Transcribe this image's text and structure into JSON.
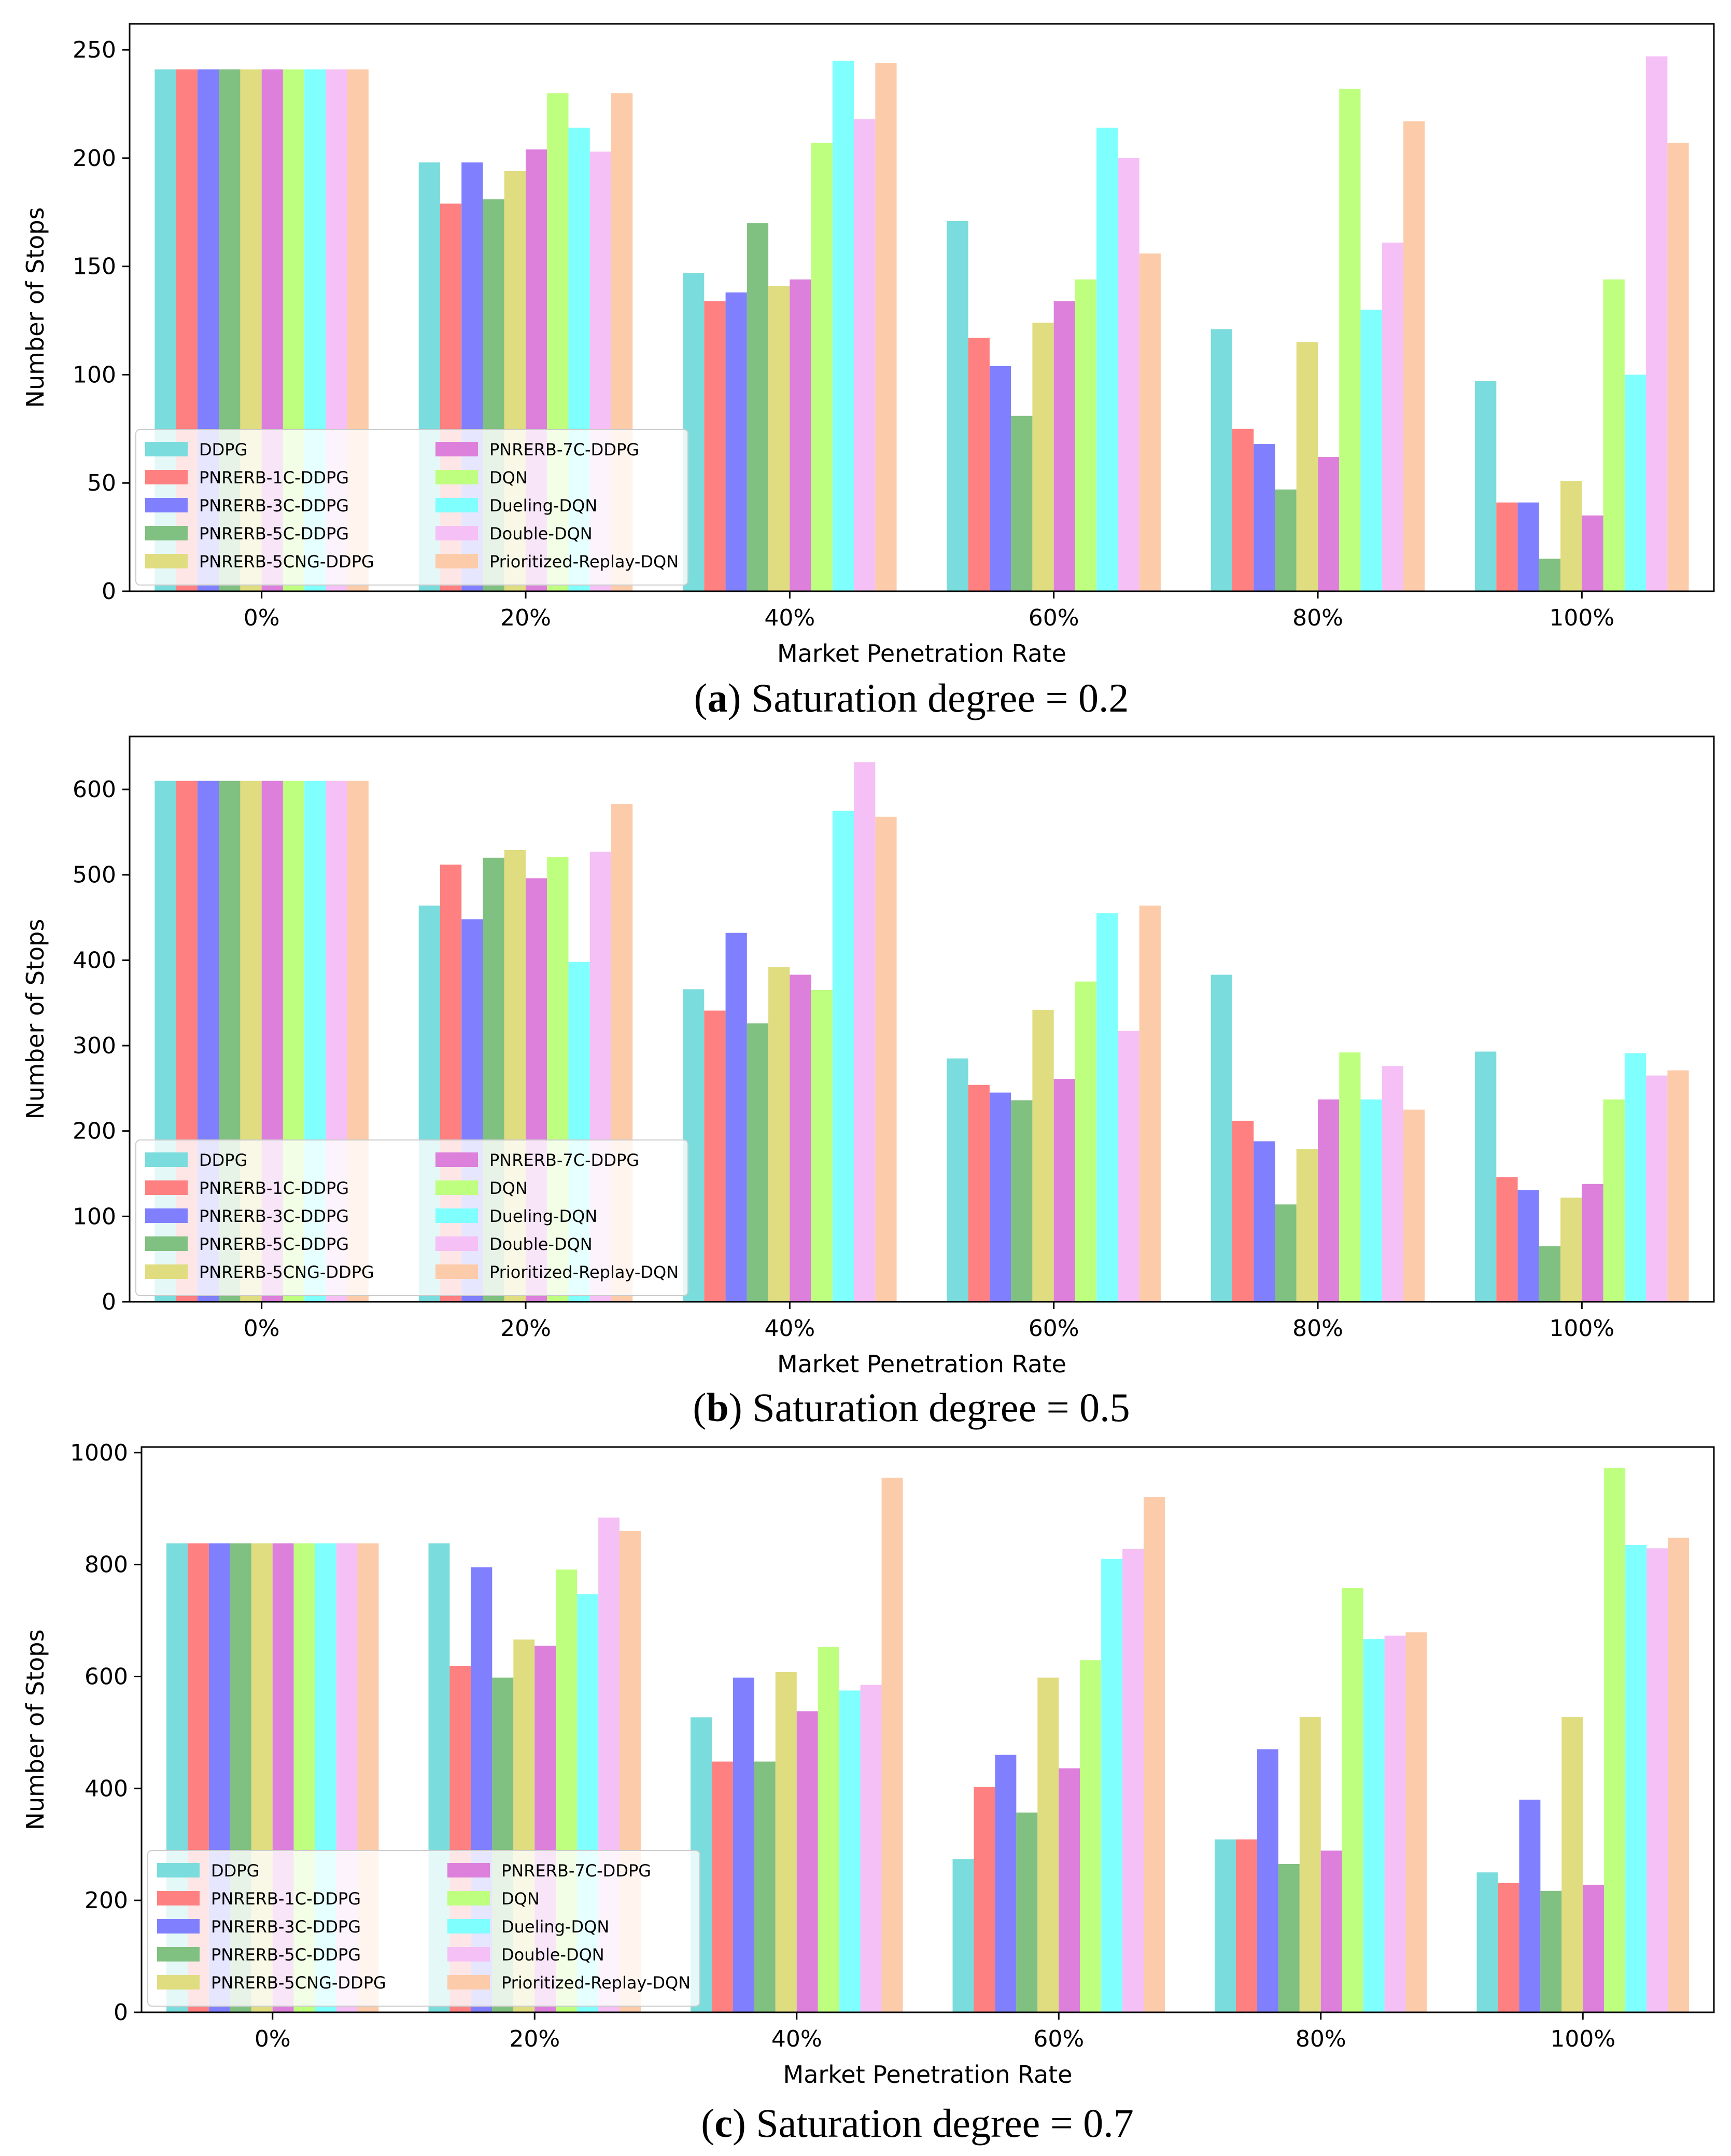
{
  "chart_data": [
    {
      "type": "bar",
      "caption_letter": "a",
      "caption_text": "Saturation degree = 0.2",
      "xlabel": "Market Penetration Rate",
      "ylabel": "Number of Stops",
      "ylim": [
        0,
        262
      ],
      "yticks": [
        0,
        50,
        100,
        150,
        200,
        250
      ],
      "legend_loc": "lower-left",
      "categories": [
        "0%",
        "20%",
        "40%",
        "60%",
        "80%",
        "100%"
      ],
      "series": [
        {
          "name": "DDPG",
          "values": [
            241,
            198,
            147,
            171,
            121,
            97
          ]
        },
        {
          "name": "PNRERB-1C-DDPG",
          "values": [
            241,
            179,
            134,
            117,
            75,
            41
          ]
        },
        {
          "name": "PNRERB-3C-DDPG",
          "values": [
            241,
            198,
            138,
            104,
            68,
            41
          ]
        },
        {
          "name": "PNRERB-5C-DDPG",
          "values": [
            241,
            181,
            170,
            81,
            47,
            15
          ]
        },
        {
          "name": "PNRERB-5CNG-DDPG",
          "values": [
            241,
            194,
            141,
            124,
            115,
            51
          ]
        },
        {
          "name": "PNRERB-7C-DDPG",
          "values": [
            241,
            204,
            144,
            134,
            62,
            35
          ]
        },
        {
          "name": "DQN",
          "values": [
            241,
            230,
            207,
            144,
            232,
            144
          ]
        },
        {
          "name": "Dueling-DQN",
          "values": [
            241,
            214,
            245,
            214,
            130,
            100
          ]
        },
        {
          "name": "Double-DQN",
          "values": [
            241,
            203,
            218,
            200,
            161,
            247
          ]
        },
        {
          "name": "Prioritized-Replay-DQN",
          "values": [
            241,
            230,
            244,
            156,
            217,
            207
          ]
        }
      ]
    },
    {
      "type": "bar",
      "caption_letter": "b",
      "caption_text": "Saturation degree = 0.5",
      "xlabel": "Market Penetration Rate",
      "ylabel": "Number of Stops",
      "ylim": [
        0,
        662
      ],
      "yticks": [
        0,
        100,
        200,
        300,
        400,
        500,
        600
      ],
      "legend_loc": "lower-left",
      "categories": [
        "0%",
        "20%",
        "40%",
        "60%",
        "80%",
        "100%"
      ],
      "series": [
        {
          "name": "DDPG",
          "values": [
            610,
            464,
            366,
            285,
            383,
            293
          ]
        },
        {
          "name": "PNRERB-1C-DDPG",
          "values": [
            610,
            512,
            341,
            254,
            212,
            146
          ]
        },
        {
          "name": "PNRERB-3C-DDPG",
          "values": [
            610,
            448,
            432,
            245,
            188,
            131
          ]
        },
        {
          "name": "PNRERB-5C-DDPG",
          "values": [
            610,
            520,
            326,
            236,
            114,
            65
          ]
        },
        {
          "name": "PNRERB-5CNG-DDPG",
          "values": [
            610,
            529,
            392,
            342,
            179,
            122
          ]
        },
        {
          "name": "PNRERB-7C-DDPG",
          "values": [
            610,
            496,
            383,
            261,
            237,
            138
          ]
        },
        {
          "name": "DQN",
          "values": [
            610,
            521,
            365,
            375,
            292,
            237
          ]
        },
        {
          "name": "Dueling-DQN",
          "values": [
            610,
            398,
            575,
            455,
            237,
            291
          ]
        },
        {
          "name": "Double-DQN",
          "values": [
            610,
            527,
            632,
            317,
            276,
            265
          ]
        },
        {
          "name": "Prioritized-Replay-DQN",
          "values": [
            610,
            583,
            568,
            464,
            225,
            271
          ]
        }
      ]
    },
    {
      "type": "bar",
      "caption_letter": "c",
      "caption_text": "Saturation degree = 0.7",
      "xlabel": "Market Penetration Rate",
      "ylabel": "Number of Stops",
      "ylim": [
        0,
        1010
      ],
      "yticks": [
        0,
        200,
        400,
        600,
        800,
        1000
      ],
      "legend_loc": "lower-left",
      "categories": [
        "0%",
        "20%",
        "40%",
        "60%",
        "80%",
        "100%"
      ],
      "series": [
        {
          "name": "DDPG",
          "values": [
            838,
            838,
            527,
            274,
            309,
            250
          ]
        },
        {
          "name": "PNRERB-1C-DDPG",
          "values": [
            838,
            619,
            448,
            403,
            309,
            231
          ]
        },
        {
          "name": "PNRERB-3C-DDPG",
          "values": [
            838,
            795,
            598,
            460,
            470,
            380
          ]
        },
        {
          "name": "PNRERB-5C-DDPG",
          "values": [
            838,
            598,
            448,
            357,
            265,
            217
          ]
        },
        {
          "name": "PNRERB-5CNG-DDPG",
          "values": [
            838,
            666,
            608,
            598,
            528,
            528
          ]
        },
        {
          "name": "PNRERB-7C-DDPG",
          "values": [
            838,
            655,
            538,
            436,
            289,
            228
          ]
        },
        {
          "name": "DQN",
          "values": [
            838,
            791,
            653,
            629,
            758,
            973
          ]
        },
        {
          "name": "Dueling-DQN",
          "values": [
            838,
            747,
            575,
            810,
            667,
            835
          ]
        },
        {
          "name": "Double-DQN",
          "values": [
            838,
            884,
            585,
            828,
            673,
            829
          ]
        },
        {
          "name": "Prioritized-Replay-DQN",
          "values": [
            838,
            860,
            955,
            921,
            679,
            848
          ]
        }
      ]
    }
  ],
  "colors": {
    "DDPG": "#7adcdc",
    "PNRERB-1C-DDPG": "#ff8080",
    "PNRERB-3C-DDPG": "#8080ff",
    "PNRERB-5C-DDPG": "#80c080",
    "PNRERB-5CNG-DDPG": "#e0dc80",
    "PNRERB-7C-DDPG": "#dc80dc",
    "DQN": "#bfff80",
    "Dueling-DQN": "#80ffff",
    "Double-DQN": "#f5c0f5",
    "Prioritized-Replay-DQN": "#fcccaa"
  }
}
